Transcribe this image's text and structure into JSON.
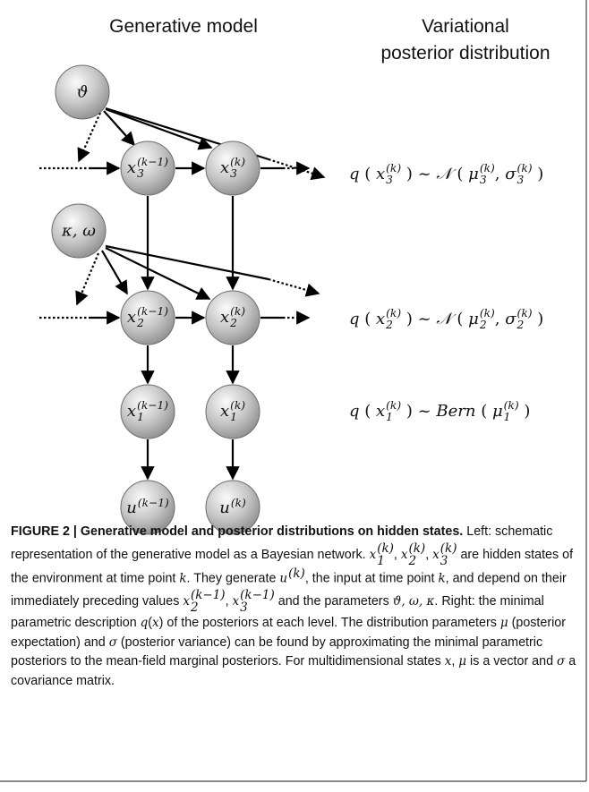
{
  "headers": {
    "left": "Generative model",
    "right": [
      "Variational",
      "posterior distribution"
    ]
  },
  "nodes": [
    {
      "label": [
        {
          "i": "ϑ"
        }
      ]
    },
    {
      "label": [
        {
          "i": "x",
          "sup": "(k−1)",
          "sub": "3"
        }
      ]
    },
    {
      "label": [
        {
          "i": "x",
          "sup": "(k)",
          "sub": "3"
        }
      ]
    },
    {
      "label": [
        {
          "i": "κ, ω"
        }
      ]
    },
    {
      "label": [
        {
          "i": "x",
          "sup": "(k−1)",
          "sub": "2"
        }
      ]
    },
    {
      "label": [
        {
          "i": "x",
          "sup": "(k)",
          "sub": "2"
        }
      ]
    },
    {
      "label": [
        {
          "i": "x",
          "sup": "(k−1)",
          "sub": "1"
        }
      ]
    },
    {
      "label": [
        {
          "i": "x",
          "sup": "(k)",
          "sub": "1"
        }
      ]
    },
    {
      "label": [
        {
          "i": "u",
          "sup": "(k−1)"
        }
      ]
    },
    {
      "label": [
        {
          "i": "u",
          "sup": "(k)"
        }
      ]
    }
  ],
  "posteriors": [
    {
      "parts": [
        {
          "i": "q"
        },
        {
          "t": " ( "
        },
        {
          "i": "x",
          "sup": "(k)",
          "sub": "3"
        },
        {
          "t": " ) ~ "
        },
        {
          "i": "𝒩"
        },
        {
          "t": " ( "
        },
        {
          "i": "μ",
          "sup": "(k)",
          "sub": "3"
        },
        {
          "t": ", "
        },
        {
          "i": "σ",
          "sup": "(k)",
          "sub": "3"
        },
        {
          "t": " )"
        }
      ]
    },
    {
      "parts": [
        {
          "i": "q"
        },
        {
          "t": " ( "
        },
        {
          "i": "x",
          "sup": "(k)",
          "sub": "2"
        },
        {
          "t": " ) ~ "
        },
        {
          "i": "𝒩"
        },
        {
          "t": " ( "
        },
        {
          "i": "μ",
          "sup": "(k)",
          "sub": "2"
        },
        {
          "t": ", "
        },
        {
          "i": "σ",
          "sup": "(k)",
          "sub": "2"
        },
        {
          "t": " )"
        }
      ]
    },
    {
      "parts": [
        {
          "i": "q"
        },
        {
          "t": " ( "
        },
        {
          "i": "x",
          "sup": "(k)",
          "sub": "1"
        },
        {
          "t": " ) ~ "
        },
        {
          "i": "Bern"
        },
        {
          "t": " ( "
        },
        {
          "i": "μ",
          "sup": "(k)",
          "sub": "1"
        },
        {
          "t": " )"
        }
      ]
    }
  ],
  "caption": [
    {
      "b": "FIGURE 2 | Generative model and posterior distributions on hidden states."
    },
    {
      "t": " Left: schematic representation of the generative model as a Bayesian network. "
    },
    {
      "i": "x",
      "sup": "(k)",
      "sub": "1"
    },
    {
      "t": ", "
    },
    {
      "i": "x",
      "sup": "(k)",
      "sub": "2"
    },
    {
      "t": ", "
    },
    {
      "i": "x",
      "sup": "(k)",
      "sub": "3"
    },
    {
      "t": " are hidden states of the environment at time point "
    },
    {
      "i": "k"
    },
    {
      "t": ". They generate "
    },
    {
      "i": "u",
      "sup": "(k)"
    },
    {
      "t": ", the input at time point "
    },
    {
      "i": "k"
    },
    {
      "t": ", and depend on their immediately preceding values "
    },
    {
      "i": "x",
      "sup": "(k−1)",
      "sub": "2"
    },
    {
      "t": ",  "
    },
    {
      "i": "x",
      "sup": "(k−1)",
      "sub": "3"
    },
    {
      "t": " and the parameters "
    },
    {
      "i": "ϑ, ω, κ"
    },
    {
      "t": ". Right: the minimal parametric description "
    },
    {
      "i": "q"
    },
    {
      "t": "("
    },
    {
      "i": "x"
    },
    {
      "t": ") of the posteriors at each level. The distribution parameters "
    },
    {
      "i": "μ"
    },
    {
      "t": " (posterior expectation) and "
    },
    {
      "i": "σ"
    },
    {
      "t": " (posterior variance) can be found by approximating the minimal parametric posteriors to the mean-field marginal posteriors. For multidimensional states "
    },
    {
      "i": "x"
    },
    {
      "t": ", "
    },
    {
      "i": "μ"
    },
    {
      "t": " is a vector and "
    },
    {
      "i": "σ"
    },
    {
      "t": " a covariance matrix."
    }
  ]
}
